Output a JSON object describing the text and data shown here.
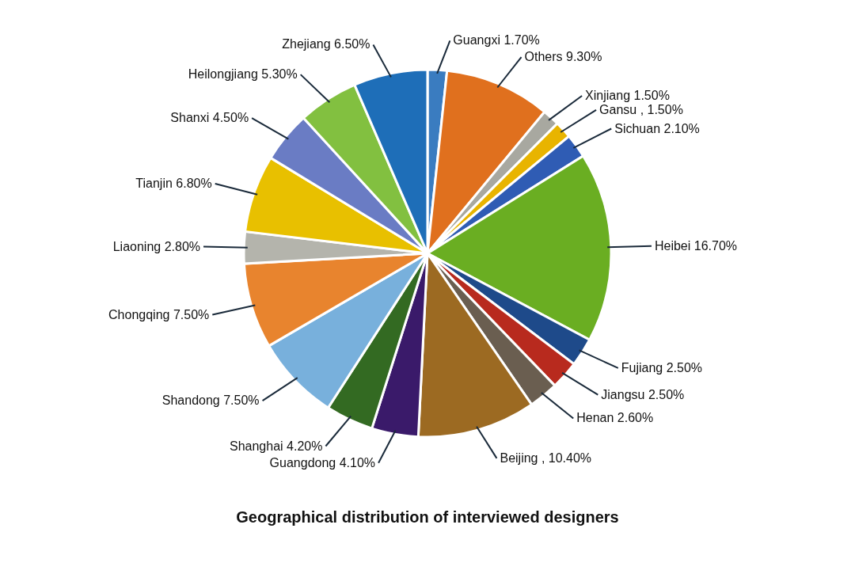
{
  "chart_data": {
    "type": "pie",
    "title": "Geographical distribution of interviewed designers",
    "categories": [
      "Guangxi",
      "Others",
      "Xinjiang",
      "Gansu",
      "Sichuan",
      "Heibei",
      "Fujiang",
      "Jiangsu",
      "Henan",
      "Beijing",
      "Guangdong",
      "Shanghai",
      "Shandong",
      "Chongqing",
      "Liaoning",
      "Tianjin",
      "Shanxi",
      "Heilongjiang",
      "Zhejiang"
    ],
    "values": [
      1.7,
      9.3,
      1.5,
      1.5,
      2.1,
      16.7,
      2.5,
      2.5,
      2.6,
      10.4,
      4.1,
      4.2,
      7.5,
      7.5,
      2.8,
      6.8,
      4.5,
      5.3,
      6.5
    ],
    "value_labels": [
      "1.70%",
      "9.30%",
      "1.50%",
      ", 1.50%",
      "2.10%",
      "16.70%",
      "2.50%",
      "2.50%",
      "2.60%",
      ", 10.40%",
      "4.10%",
      "4.20%",
      "7.50%",
      "7.50%",
      "2.80%",
      "6.80%",
      "4.50%",
      "5.30%",
      "6.50%"
    ],
    "colors": [
      "#3a7cc0",
      "#e0701e",
      "#a8a8a0",
      "#e8b400",
      "#2f5cb4",
      "#6aae22",
      "#1e4a8a",
      "#b82a1e",
      "#6a5e50",
      "#9c6a22",
      "#3a1a6a",
      "#336a22",
      "#78b0dc",
      "#e8842e",
      "#b4b4ac",
      "#e8c000",
      "#6a7cc4",
      "#82c040",
      "#1e6eb8"
    ]
  }
}
